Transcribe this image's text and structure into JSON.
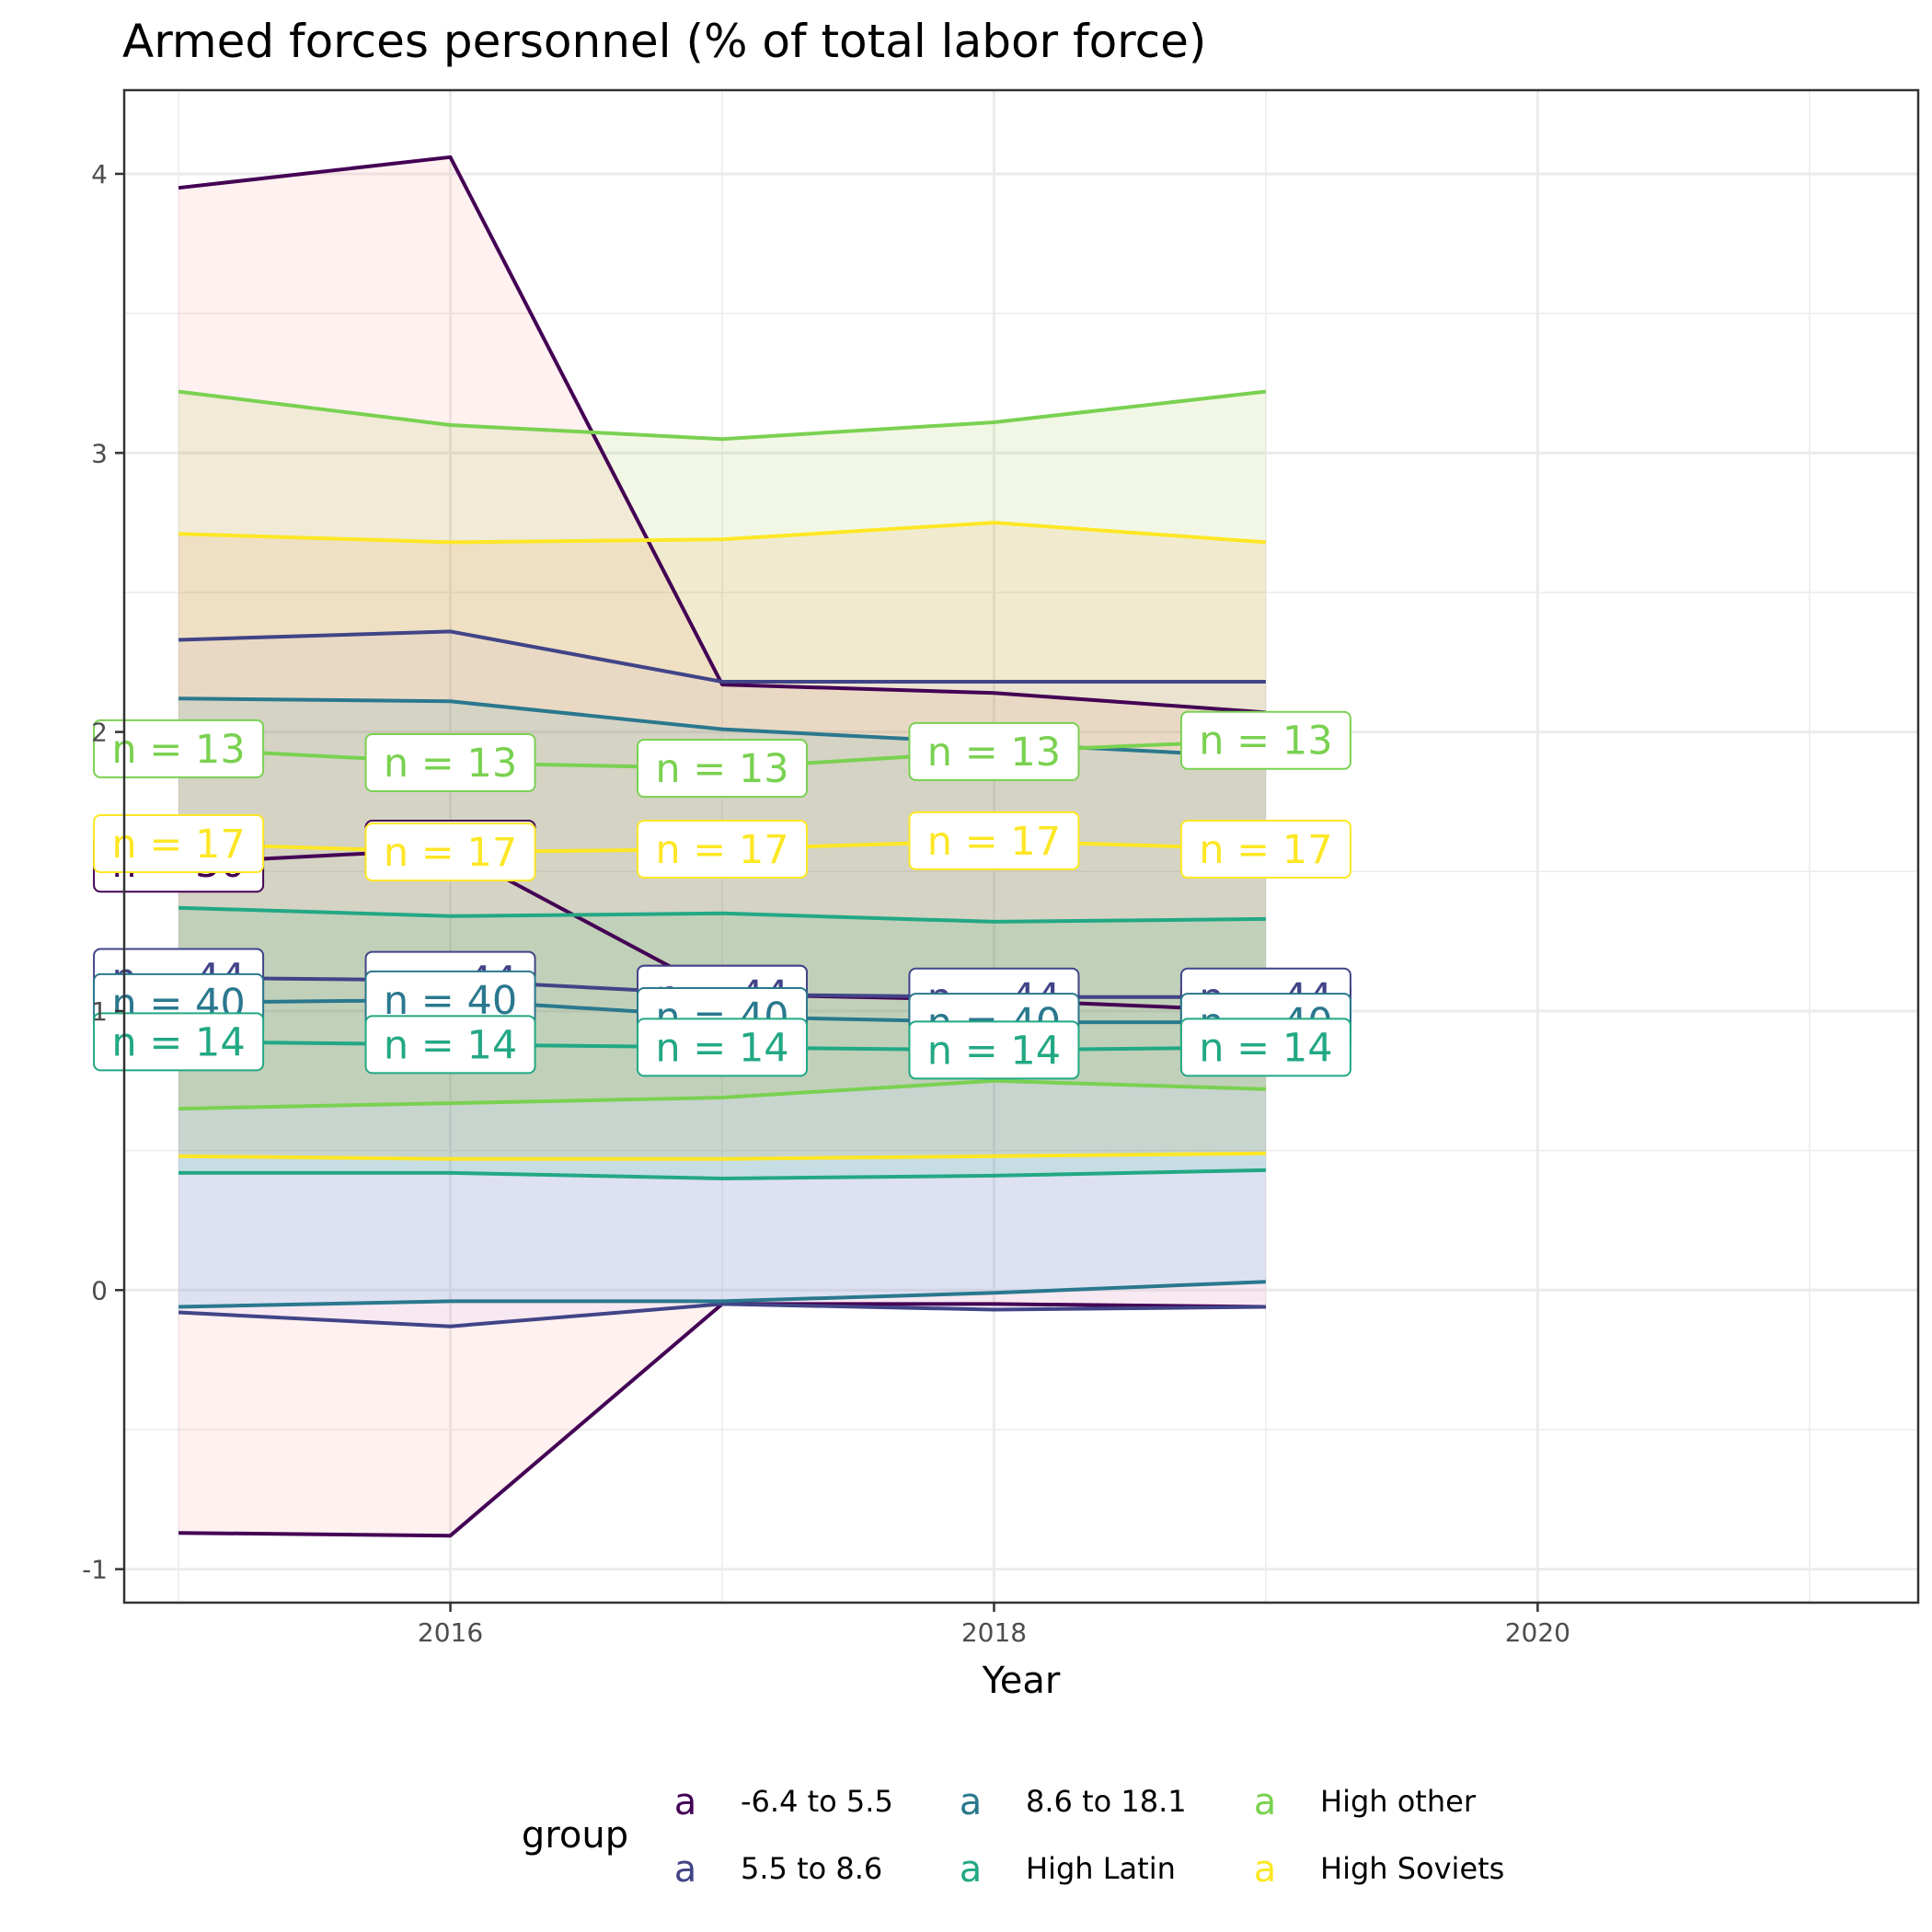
{
  "chart_data": {
    "type": "line",
    "title": "Armed forces personnel (% of total labor force)",
    "xlabel": "Year",
    "ylabel": "",
    "xlim": [
      2014.8,
      2021.4
    ],
    "ylim": [
      -1.12,
      4.3
    ],
    "x_ticks": [
      2016,
      2018,
      2020
    ],
    "x_tick_labels": [
      "2016",
      "2018",
      "2020"
    ],
    "y_ticks": [
      -1,
      0,
      1,
      2,
      3,
      4
    ],
    "y_tick_labels": [
      "-1",
      "0",
      "1",
      "2",
      "3",
      "4"
    ],
    "grid": true,
    "x": [
      2015,
      2016,
      2017,
      2018,
      2019
    ],
    "label_x": [
      2015,
      2016,
      2017,
      2018,
      2019
    ],
    "series": [
      {
        "name": "-6.4 to 5.5",
        "color": "#440154",
        "fill": "#F8766D",
        "mean": [
          1.53,
          1.58,
          1.06,
          1.04,
          1.0
        ],
        "upper": [
          3.95,
          4.06,
          2.17,
          2.14,
          2.07
        ],
        "lower": [
          -0.87,
          -0.88,
          -0.05,
          -0.05,
          -0.06
        ],
        "n_label": "n = 30",
        "label_y": [
          1.53,
          1.58,
          1.06,
          1.04,
          1.0
        ]
      },
      {
        "name": "5.5 to 8.6",
        "color": "#414487",
        "fill": "#B79FFF",
        "mean": [
          1.12,
          1.11,
          1.06,
          1.05,
          1.05
        ],
        "upper": [
          2.33,
          2.36,
          2.18,
          2.18,
          2.18
        ],
        "lower": [
          -0.08,
          -0.13,
          -0.05,
          -0.07,
          -0.06
        ],
        "n_label": "n = 44",
        "label_y": [
          1.12,
          1.11,
          1.06,
          1.05,
          1.05
        ]
      },
      {
        "name": "8.6 to 18.1",
        "color": "#2A788E",
        "fill": "#00A9FF",
        "mean": [
          1.03,
          1.04,
          0.98,
          0.96,
          0.96
        ],
        "upper": [
          2.12,
          2.11,
          2.01,
          1.96,
          1.91
        ],
        "lower": [
          -0.06,
          -0.04,
          -0.04,
          -0.01,
          0.03
        ],
        "n_label": "n = 40",
        "label_y": [
          1.03,
          1.04,
          0.98,
          0.96,
          0.96
        ]
      },
      {
        "name": "High Latin",
        "color": "#22A884",
        "fill": "#00BE67",
        "mean": [
          0.89,
          0.88,
          0.87,
          0.86,
          0.87
        ],
        "upper": [
          1.37,
          1.34,
          1.35,
          1.32,
          1.33
        ],
        "lower": [
          0.42,
          0.42,
          0.4,
          0.41,
          0.43
        ],
        "n_label": "n = 14",
        "label_y": [
          0.89,
          0.88,
          0.87,
          0.86,
          0.87
        ]
      },
      {
        "name": "High other",
        "color": "#7AD151",
        "fill": "#7CAE00",
        "mean": [
          1.94,
          1.89,
          1.87,
          1.93,
          1.97
        ],
        "upper": [
          3.22,
          3.1,
          3.05,
          3.11,
          3.22
        ],
        "lower": [
          0.65,
          0.67,
          0.69,
          0.75,
          0.72
        ],
        "n_label": "n = 13",
        "label_y": [
          1.94,
          1.89,
          1.87,
          1.93,
          1.97
        ]
      },
      {
        "name": "High Soviets",
        "color": "#FDE725",
        "fill": "#E68613",
        "mean": [
          1.6,
          1.57,
          1.58,
          1.61,
          1.58
        ],
        "upper": [
          2.71,
          2.68,
          2.69,
          2.75,
          2.68
        ],
        "lower": [
          0.48,
          0.47,
          0.47,
          0.48,
          0.49
        ],
        "n_label": "n = 17",
        "label_y": [
          1.6,
          1.57,
          1.58,
          1.61,
          1.58
        ]
      }
    ],
    "legend": {
      "title": "group",
      "position": "bottom",
      "key_glyph": "a"
    }
  }
}
